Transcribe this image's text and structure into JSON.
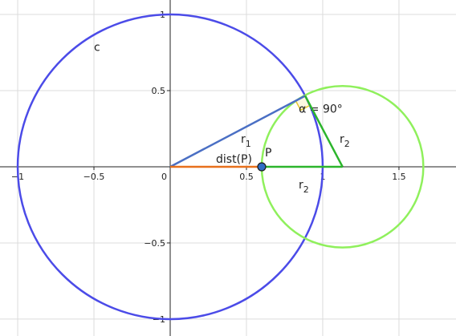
{
  "chart_data": {
    "type": "geometry",
    "xlim": [
      -1.116,
      1.874
    ],
    "ylim": [
      -1.111,
      1.095
    ],
    "xticks": [
      {
        "value": -1,
        "label": "−1"
      },
      {
        "value": -0.5,
        "label": "−0.5"
      },
      0,
      0.5,
      1,
      1.5
    ],
    "yticks": [
      {
        "value": -1,
        "label": "−1"
      },
      {
        "value": -0.5,
        "label": "−0.5"
      },
      0.5,
      1
    ],
    "grid": true,
    "circles": [
      {
        "label": "c",
        "color": "#4b4be8",
        "center": [
          0,
          0
        ],
        "radius": 1
      },
      {
        "color": "#8ff05c",
        "center": [
          1.13,
          0
        ],
        "radius": 0.53
      }
    ],
    "segments": [
      {
        "label": {
          "text": "r",
          "sub": "1"
        },
        "color": "#4a6fc4",
        "from": [
          0,
          0
        ],
        "to": [
          0.885,
          0.466
        ]
      },
      {
        "label": "dist(P)",
        "color": "#e8701c",
        "from": [
          0,
          0
        ],
        "to": [
          0.6,
          0
        ]
      },
      {
        "label": {
          "text": "r",
          "sub": "2"
        },
        "color": "#2cb52c",
        "from": [
          0.6,
          0
        ],
        "to": [
          1.13,
          0
        ]
      },
      {
        "label": {
          "text": "r",
          "sub": "2"
        },
        "color": "#2cb52c",
        "from": [
          0.885,
          0.466
        ],
        "to": [
          1.13,
          0
        ]
      }
    ],
    "angle": {
      "label": "α = 90°",
      "color": "#e8c832",
      "vertex": [
        0.885,
        0.466
      ]
    },
    "point": {
      "label": "P",
      "color": "#2f6cc4",
      "x": 0.6,
      "y": 0
    }
  }
}
